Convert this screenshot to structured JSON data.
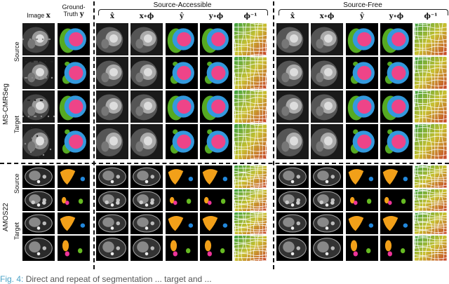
{
  "headers": {
    "image": "Image",
    "image_sym": "x",
    "gt_line1": "Ground-",
    "gt_line2": "Truth",
    "gt_sym": "y",
    "xhat": "x̂",
    "xphi": "x∘ϕ",
    "yhat": "ŷ",
    "yphi": "y∘ϕ",
    "phiinv": "ϕ⁻¹"
  },
  "groups": {
    "source_accessible": "Source-Accessible",
    "source_free": "Source-Free"
  },
  "datasets": {
    "ms": "MS-CMRSeg",
    "amos": "AMOS22"
  },
  "row_labels": {
    "source": "Source",
    "target": "Target"
  },
  "caption": {
    "fig": "Fig. 4:",
    "text": "Direct and repeat of segmentation ... target and ..."
  },
  "colors": {
    "myocardium": "#3399dd",
    "blood_pool": "#ee4488",
    "ventricle": "#55aa22",
    "liver": "#f2a019",
    "organ_blue": "#2288dd",
    "organ_pink": "#ee3399",
    "organ_green": "#66bb22"
  }
}
